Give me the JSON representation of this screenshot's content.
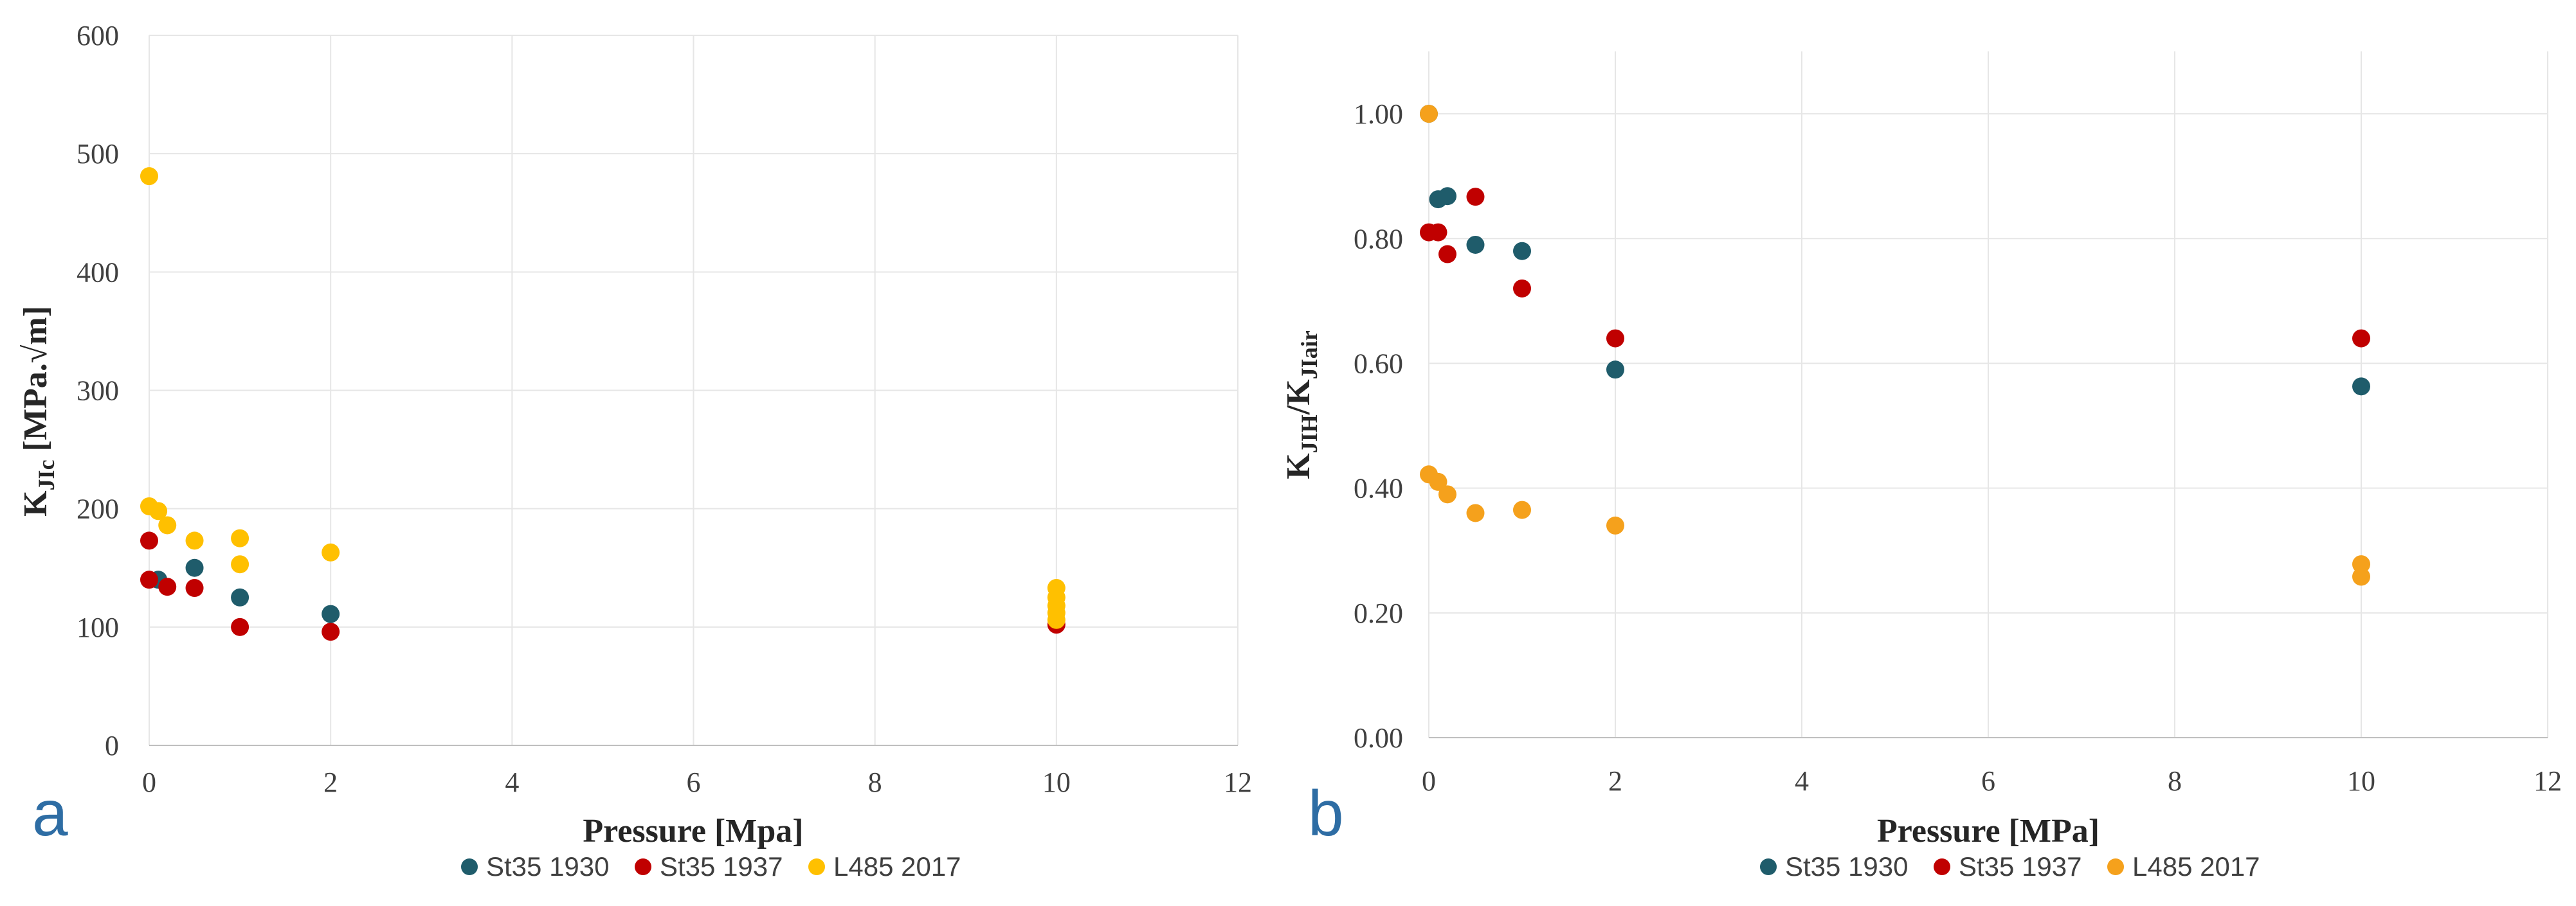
{
  "colors": {
    "St35 1930": "#1f5c6b",
    "St35 1937": "#c00000",
    "L485 2017": "#ffc000",
    "L485 2017 (b)": "#f5a11c"
  },
  "chart_data": [
    {
      "type": "scatter",
      "panel_label": "a",
      "title": "",
      "xlabel": "Pressure [Mpa]",
      "ylabel_main": "K",
      "ylabel_sub": "JIc",
      "ylabel_rest": " [MPa.√m]",
      "xlim": [
        0,
        12
      ],
      "ylim": [
        0,
        600
      ],
      "xticks": [
        "0",
        "2",
        "4",
        "6",
        "8",
        "10",
        "12"
      ],
      "yticks": [
        "0",
        "100",
        "200",
        "300",
        "400",
        "500",
        "600"
      ],
      "legend": [
        "St35 1930",
        "St35 1937",
        "L485 2017"
      ],
      "series": [
        {
          "name": "St35 1930",
          "color_key": "St35 1930",
          "points": [
            [
              0.1,
              140
            ],
            [
              0.5,
              150
            ],
            [
              1,
              125
            ],
            [
              2,
              111
            ]
          ]
        },
        {
          "name": "St35 1937",
          "color_key": "St35 1937",
          "points": [
            [
              0,
              173
            ],
            [
              0,
              140
            ],
            [
              0.2,
              134
            ],
            [
              0.5,
              133
            ],
            [
              1,
              100
            ],
            [
              2,
              96
            ],
            [
              10,
              102
            ]
          ]
        },
        {
          "name": "L485 2017",
          "color_key": "L485 2017",
          "points": [
            [
              0,
              481
            ],
            [
              0,
              202
            ],
            [
              0.1,
              198
            ],
            [
              0.2,
              186
            ],
            [
              0.5,
              173
            ],
            [
              1,
              175
            ],
            [
              1,
              153
            ],
            [
              2,
              163
            ],
            [
              10,
              133
            ],
            [
              10,
              125
            ],
            [
              10,
              118
            ],
            [
              10,
              112
            ],
            [
              10,
              106
            ]
          ]
        }
      ]
    },
    {
      "type": "scatter",
      "panel_label": "b",
      "title": "",
      "xlabel": "Pressure [MPa]",
      "ylabel_main": "K",
      "ylabel_sub": "JIH",
      "ylabel_mid": "/K",
      "ylabel_sub2": "JIair",
      "xlim": [
        0,
        12
      ],
      "ylim": [
        0,
        1.1
      ],
      "xticks": [
        "0",
        "2",
        "4",
        "6",
        "8",
        "10",
        "12"
      ],
      "yticks": [
        "0.00",
        "0.20",
        "0.40",
        "0.60",
        "0.80",
        "1.00"
      ],
      "legend": [
        "St35 1930",
        "St35 1937",
        "L485 2017"
      ],
      "series": [
        {
          "name": "St35 1930",
          "color_key": "St35 1930",
          "points": [
            [
              0,
              1.0
            ],
            [
              0.1,
              0.863
            ],
            [
              0.2,
              0.868
            ],
            [
              0.5,
              0.79
            ],
            [
              1,
              0.78
            ],
            [
              2,
              0.59
            ],
            [
              10,
              0.563
            ]
          ]
        },
        {
          "name": "St35 1937",
          "color_key": "St35 1937",
          "points": [
            [
              0,
              0.81
            ],
            [
              0.1,
              0.81
            ],
            [
              0.2,
              0.775
            ],
            [
              0.5,
              0.867
            ],
            [
              1,
              0.72
            ],
            [
              2,
              0.64
            ],
            [
              10,
              0.64
            ]
          ]
        },
        {
          "name": "L485 2017",
          "color_key": "L485 2017 (b)",
          "points": [
            [
              0,
              1.0
            ],
            [
              0,
              0.422
            ],
            [
              0.1,
              0.41
            ],
            [
              0.2,
              0.39
            ],
            [
              0.5,
              0.36
            ],
            [
              1,
              0.365
            ],
            [
              2,
              0.34
            ],
            [
              10,
              0.278
            ],
            [
              10,
              0.258
            ]
          ]
        }
      ]
    }
  ]
}
